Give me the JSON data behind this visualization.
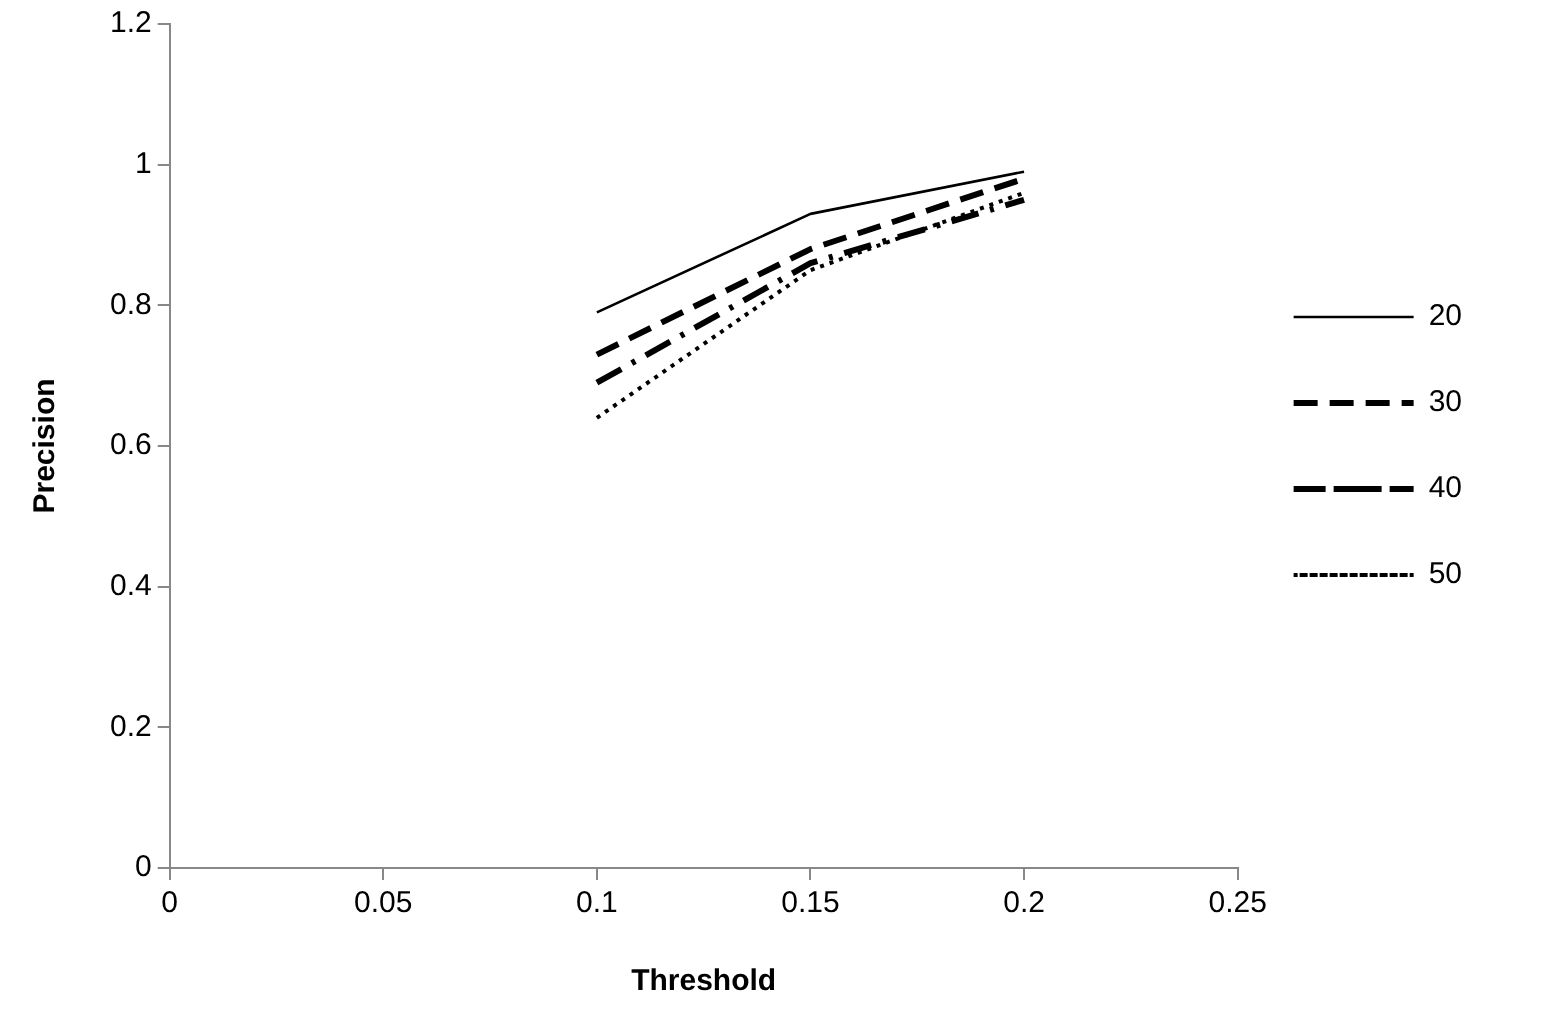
{
  "chart_data": {
    "type": "line",
    "xlabel": "Threshold",
    "ylabel": "Precision",
    "x": [
      0.1,
      0.15,
      0.2
    ],
    "series": [
      {
        "name": "20",
        "color": "#000000",
        "values": [
          0.79,
          0.93,
          0.99
        ],
        "line_style": "solid"
      },
      {
        "name": "30",
        "color": "#000000",
        "values": [
          0.73,
          0.88,
          0.98
        ],
        "line_style": "dashed"
      },
      {
        "name": "40",
        "color": "#000000",
        "values": [
          0.69,
          0.86,
          0.95
        ],
        "line_style": "dashdot"
      },
      {
        "name": "50",
        "color": "#000000",
        "values": [
          0.64,
          0.85,
          0.96
        ],
        "line_style": "dotted"
      }
    ],
    "xlim": [
      0,
      0.25
    ],
    "xticks": [
      0,
      0.05,
      0.1,
      0.15,
      0.2,
      0.25
    ],
    "ylim": [
      0,
      1.2
    ],
    "yticks": [
      0,
      0.2,
      0.4,
      0.6,
      0.8,
      1,
      1.2
    ],
    "grid": false,
    "legend": "right",
    "marker": "none"
  }
}
